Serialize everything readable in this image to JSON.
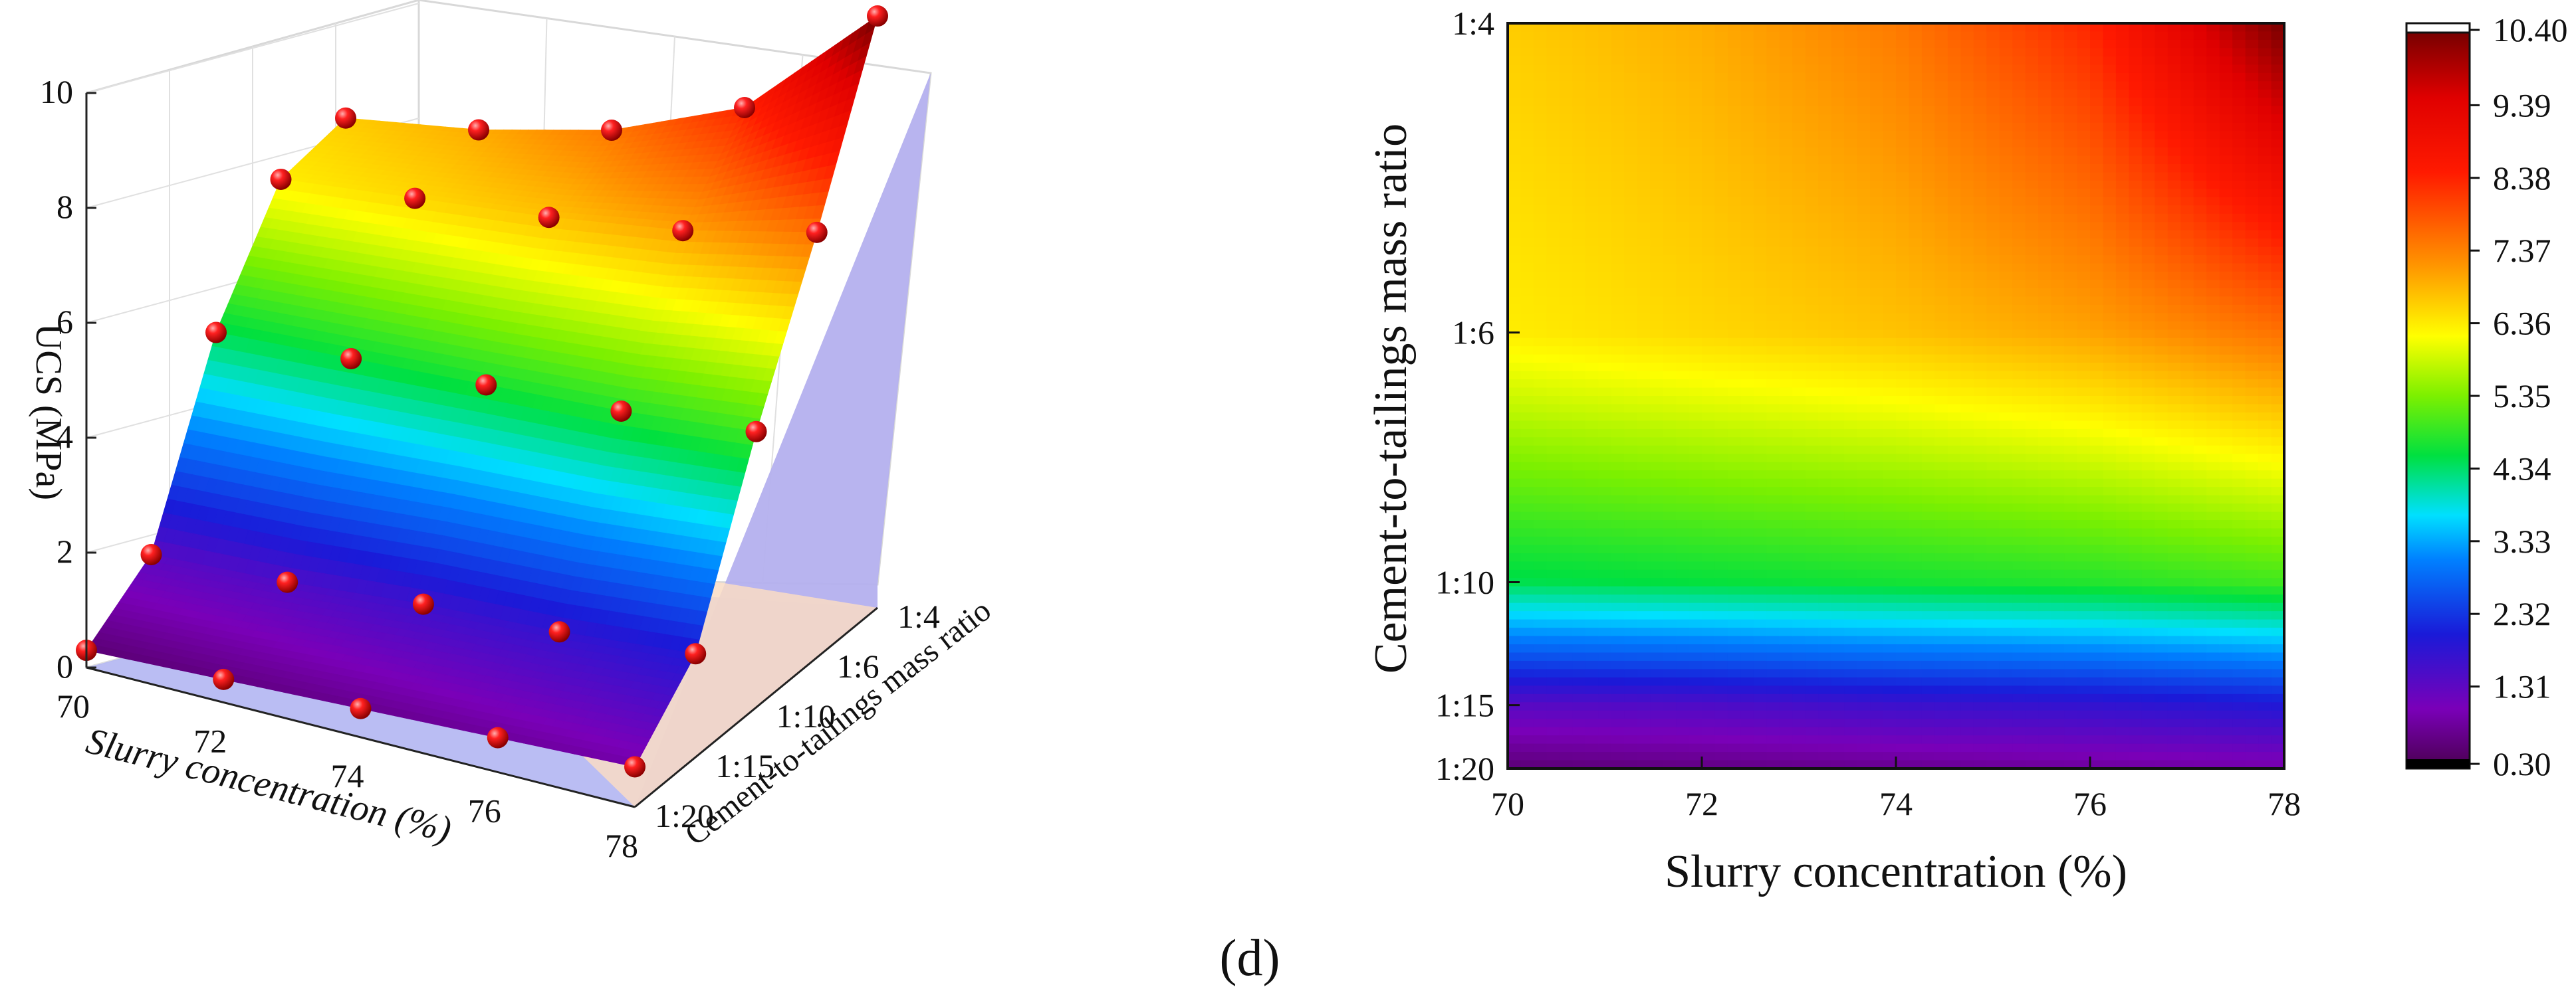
{
  "caption": "(d)",
  "chart_data": [
    {
      "type": "surface3d",
      "panel": "left",
      "xlabel": "Slurry concentration (%)",
      "ylabel": "Cement-to-tailings mass ratio",
      "zlabel": "UCS (MPa)",
      "x": [
        70,
        72,
        74,
        76,
        78
      ],
      "x_ticks": [
        "70",
        "72",
        "74",
        "76",
        "78"
      ],
      "y_categories": [
        "1:20",
        "1:15",
        "1:10",
        "1:6",
        "1:4"
      ],
      "z_ticks": [
        "0",
        "2",
        "4",
        "6",
        "8",
        "10"
      ],
      "zlim": [
        0,
        10.4
      ],
      "series": [
        {
          "name": "1:20",
          "values": [
            0.3,
            0.4,
            0.5,
            0.6,
            0.7
          ]
        },
        {
          "name": "1:15",
          "values": [
            1.2,
            1.3,
            1.5,
            1.6,
            1.8
          ]
        },
        {
          "name": "1:10",
          "values": [
            4.3,
            4.4,
            4.5,
            4.6,
            4.8
          ]
        },
        {
          "name": "1:6",
          "values": [
            6.2,
            6.4,
            6.6,
            6.9,
            7.4
          ]
        },
        {
          "name": "1:4",
          "values": [
            6.5,
            6.8,
            7.3,
            8.2,
            10.3
          ]
        }
      ]
    },
    {
      "type": "heatmap",
      "panel": "right",
      "xlabel": "Slurry concentration (%)",
      "ylabel": "Cement-to-tailings mass ratio",
      "x_ticks": [
        "70",
        "72",
        "74",
        "76",
        "78"
      ],
      "y_ticks": [
        "1:4",
        "1:6",
        "1:10",
        "1:15",
        "1:20"
      ],
      "colorbar_ticks": [
        "10.40",
        "9.39",
        "8.38",
        "7.37",
        "6.36",
        "5.35",
        "4.34",
        "3.33",
        "2.32",
        "1.31",
        "0.30"
      ],
      "colorbar_range": [
        0.3,
        10.4
      ]
    }
  ]
}
